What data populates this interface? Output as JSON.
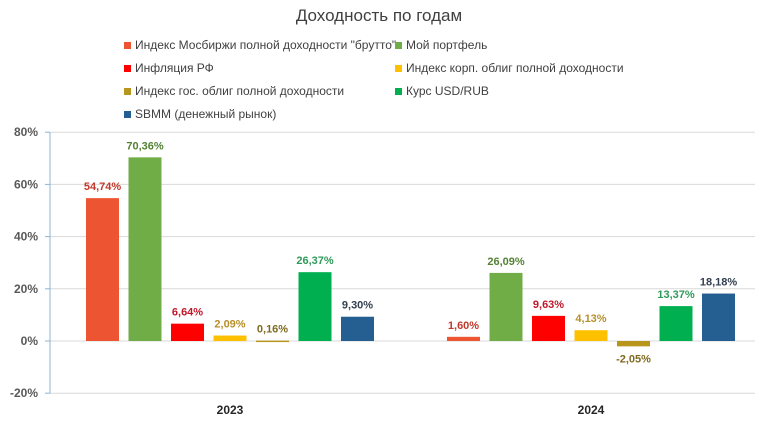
{
  "chart_data": {
    "type": "bar",
    "title": "Доходность по годам",
    "categories": [
      "2023",
      "2024"
    ],
    "ylim": [
      -20,
      80
    ],
    "yticks": [
      "-20%",
      "0%",
      "20%",
      "40%",
      "60%",
      "80%"
    ],
    "ytick_values": [
      -20,
      0,
      20,
      40,
      60,
      80
    ],
    "grid": true,
    "legend_position": "top",
    "series": [
      {
        "name": "Индекс Мосбиржи полной доходности \"брутто\"",
        "color": "#ed5532",
        "label_color": "#c0392b",
        "values": [
          54.74,
          1.6
        ],
        "labels": [
          "54,74%",
          "1,60%"
        ]
      },
      {
        "name": "Мой портфель",
        "color": "#70ad47",
        "label_color": "#548235",
        "values": [
          70.36,
          26.09
        ],
        "labels": [
          "70,36%",
          "26,09%"
        ]
      },
      {
        "name": "Инфляция РФ",
        "color": "#ff0000",
        "label_color": "#c0182b",
        "values": [
          6.64,
          9.63
        ],
        "labels": [
          "6,64%",
          "9,63%"
        ]
      },
      {
        "name": "Индекс корп. облиг полной доходности",
        "color": "#ffc000",
        "label_color": "#b8902a",
        "values": [
          2.09,
          4.13
        ],
        "labels": [
          "2,09%",
          "4,13%"
        ]
      },
      {
        "name": "Индекс гос. облиг полной доходности",
        "color": "#b8961e",
        "label_color": "#7f6a20",
        "values": [
          0.16,
          -2.05
        ],
        "labels": [
          "0,16%",
          "-2,05%"
        ]
      },
      {
        "name": "Курс USD/RUB",
        "color": "#00b050",
        "label_color": "#2e9a5a",
        "values": [
          26.37,
          13.37
        ],
        "labels": [
          "26,37%",
          "13,37%"
        ]
      },
      {
        "name": "SBMM (денежный рынок)",
        "color": "#255e91",
        "label_color": "#333f50",
        "values": [
          9.3,
          18.18
        ],
        "labels": [
          "9,30%",
          "18,18%"
        ]
      }
    ]
  }
}
